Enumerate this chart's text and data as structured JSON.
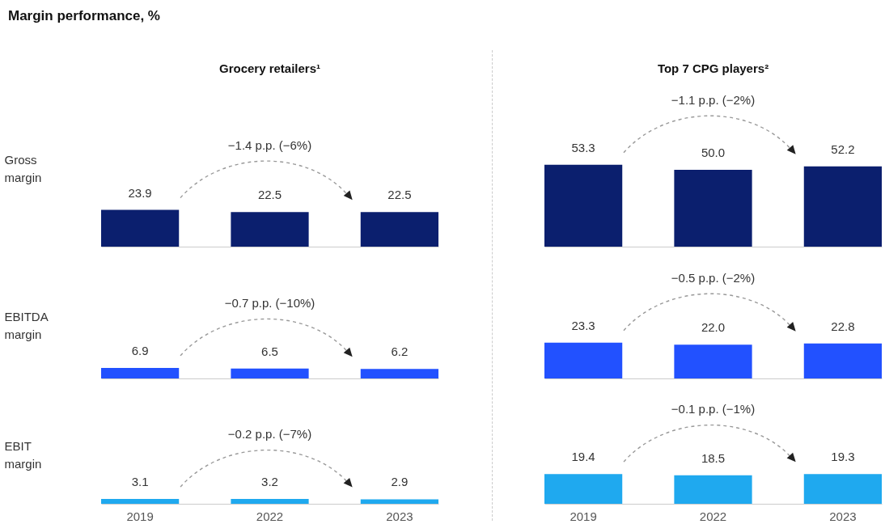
{
  "chart_data": [
    {
      "type": "bar",
      "title": "Margin performance, %",
      "subtitle": "Grocery retailers¹",
      "ylabel": "Gross margin",
      "categories": [
        "2019",
        "2022",
        "2023"
      ],
      "values": [
        23.9,
        22.5,
        22.5
      ],
      "value_labels": [
        "23.9",
        "22.5",
        "22.5"
      ],
      "color": "#0b1f6e",
      "annotations": [
        "−1.4 p.p. (−6%)"
      ],
      "tick_labels": false
    },
    {
      "type": "bar",
      "subtitle": "Top 7 CPG players²",
      "categories": [
        "2019",
        "2022",
        "2023"
      ],
      "values": [
        53.3,
        50.0,
        52.2
      ],
      "value_labels": [
        "53.3",
        "50.0",
        "52.2"
      ],
      "color": "#0b1f6e",
      "annotations": [
        "−1.1 p.p. (−2%)"
      ],
      "tick_labels": false
    },
    {
      "type": "bar",
      "ylabel": "EBITDA margin",
      "categories": [
        "2019",
        "2022",
        "2023"
      ],
      "values": [
        6.9,
        6.5,
        6.2
      ],
      "value_labels": [
        "6.9",
        "6.5",
        "6.2"
      ],
      "color": "#2251ff",
      "annotations": [
        "−0.7 p.p. (−10%)"
      ],
      "tick_labels": false
    },
    {
      "type": "bar",
      "categories": [
        "2019",
        "2022",
        "2023"
      ],
      "values": [
        23.3,
        22.0,
        22.8
      ],
      "value_labels": [
        "23.3",
        "22.0",
        "22.8"
      ],
      "color": "#2251ff",
      "annotations": [
        "−0.5 p.p. (−2%)"
      ],
      "tick_labels": false
    },
    {
      "type": "bar",
      "ylabel": "EBIT margin",
      "categories": [
        "2019",
        "2022",
        "2023"
      ],
      "values": [
        3.1,
        3.2,
        2.9
      ],
      "value_labels": [
        "3.1",
        "3.2",
        "2.9"
      ],
      "color": "#1fa9ef",
      "annotations": [
        "−0.2 p.p. (−7%)"
      ],
      "tick_labels": "x"
    },
    {
      "type": "bar",
      "categories": [
        "2019",
        "2022",
        "2023"
      ],
      "values": [
        19.4,
        18.5,
        19.3
      ],
      "value_labels": [
        "19.4",
        "18.5",
        "19.3"
      ],
      "color": "#1fa9ef",
      "annotations": [
        "−0.1 p.p. (−1%)"
      ],
      "tick_labels": "x"
    }
  ]
}
